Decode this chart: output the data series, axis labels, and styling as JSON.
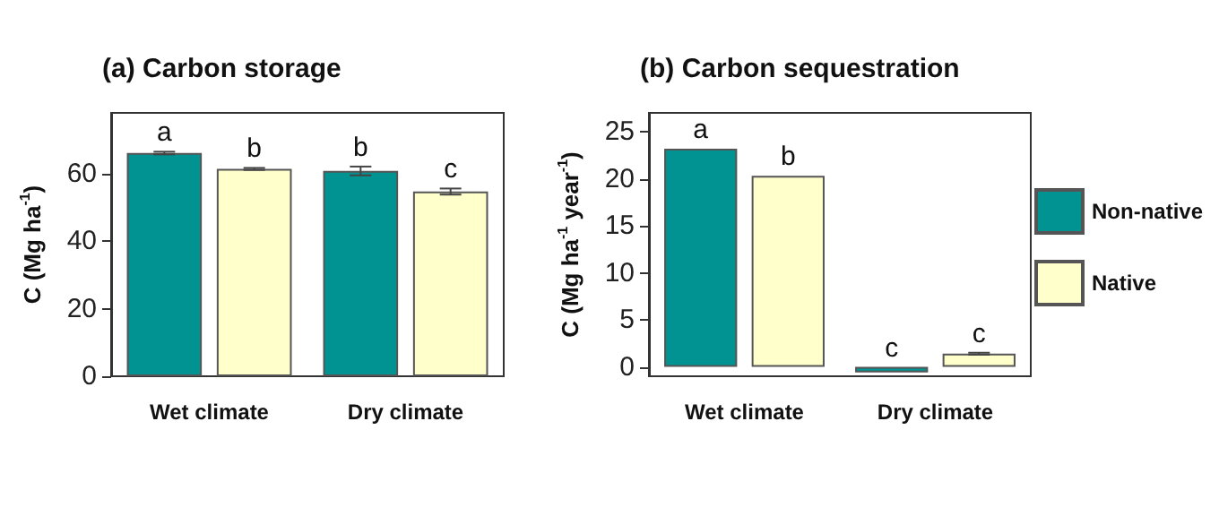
{
  "chart_data": [
    {
      "type": "bar",
      "title": "(a) Carbon storage",
      "ylabel": "C (Mg ha$^{-1}$)",
      "categories": [
        "Wet climate",
        "Dry climate"
      ],
      "series": [
        {
          "color": "#009391",
          "values": [
            66.1,
            60.8
          ],
          "errors": [
            0.4,
            1.3
          ],
          "value_labels": [
            "a",
            "b"
          ]
        },
        {
          "color": "#ffffcc",
          "values": [
            61.4,
            54.7
          ],
          "errors": [
            0.3,
            0.9
          ],
          "value_labels": [
            "b",
            "c"
          ]
        }
      ],
      "ylim": [
        0,
        78
      ],
      "yticks": [
        0,
        20,
        40,
        60
      ],
      "grid": false,
      "legend": false
    },
    {
      "type": "bar",
      "title": "(b) Carbon sequestration",
      "ylabel": "C (Mg ha$^{-1}$ year$^{-1}$)",
      "categories": [
        "Wet climate",
        "Dry climate"
      ],
      "series": [
        {
          "name": "Non-native",
          "color": "#009391",
          "values": [
            23.2,
            -0.6
          ],
          "errors": [
            null,
            null
          ],
          "value_labels": [
            "a",
            "c"
          ]
        },
        {
          "name": "Native",
          "color": "#ffffcc",
          "values": [
            20.3,
            1.4
          ],
          "errors": [
            null,
            0.1
          ],
          "value_labels": [
            "b",
            "c"
          ]
        }
      ],
      "ylim": [
        -1,
        27
      ],
      "yticks": [
        0,
        5,
        10,
        15,
        20,
        25
      ],
      "grid": false,
      "legend": "right"
    }
  ]
}
